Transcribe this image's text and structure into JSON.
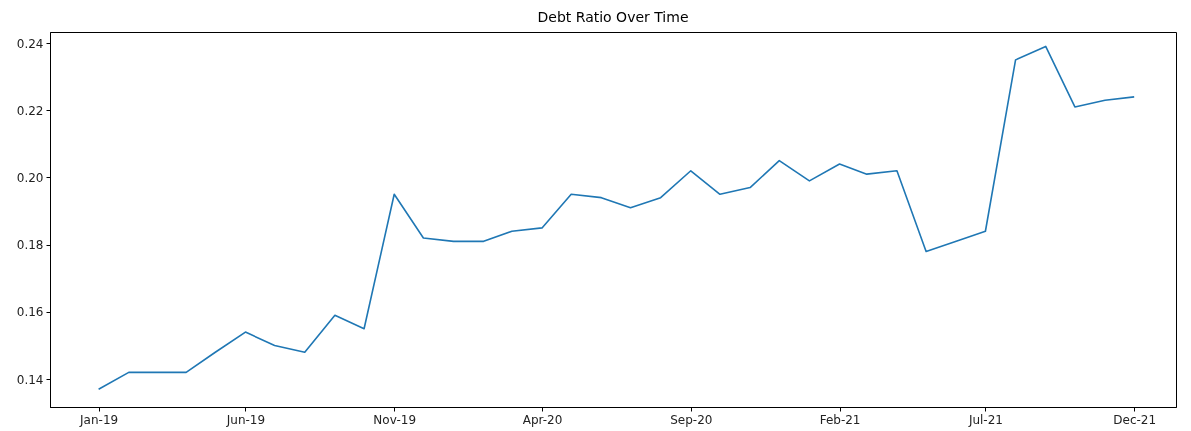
{
  "chart_data": {
    "type": "line",
    "title": "Debt Ratio Over Time",
    "x": [
      "2019-01",
      "2019-02",
      "2019-03",
      "2019-04",
      "2019-05",
      "2019-06",
      "2019-07",
      "2019-08",
      "2019-09",
      "2019-10",
      "2019-11",
      "2019-12",
      "2020-01",
      "2020-02",
      "2020-03",
      "2020-04",
      "2020-05",
      "2020-06",
      "2020-07",
      "2020-08",
      "2020-09",
      "2020-10",
      "2020-11",
      "2020-12",
      "2021-01",
      "2021-02",
      "2021-03",
      "2021-04",
      "2021-05",
      "2021-06",
      "2021-07",
      "2021-08",
      "2021-09",
      "2021-10",
      "2021-11",
      "2021-12"
    ],
    "series": [
      {
        "color": "#1f77b4",
        "values": [
          0.137,
          0.142,
          0.142,
          0.142,
          0.148,
          0.154,
          0.15,
          0.148,
          0.159,
          0.155,
          0.195,
          0.182,
          0.181,
          0.181,
          0.184,
          0.185,
          0.195,
          0.194,
          0.191,
          0.194,
          0.202,
          0.195,
          0.197,
          0.205,
          0.199,
          0.204,
          0.201,
          0.202,
          0.178,
          0.181,
          0.184,
          0.235,
          0.239,
          0.221,
          0.223,
          0.224
        ]
      }
    ],
    "xlim": [
      "2018-11-12",
      "2022-01-13"
    ],
    "xticks": [
      {
        "value": "2019-01",
        "label": "Jan-19"
      },
      {
        "value": "2019-06",
        "label": "Jun-19"
      },
      {
        "value": "2019-11",
        "label": "Nov-19"
      },
      {
        "value": "2020-04",
        "label": "Apr-20"
      },
      {
        "value": "2020-09",
        "label": "Sep-20"
      },
      {
        "value": "2021-02",
        "label": "Feb-21"
      },
      {
        "value": "2021-07",
        "label": "Jul-21"
      },
      {
        "value": "2021-12",
        "label": "Dec-21"
      }
    ],
    "ylim": [
      0.1317,
      0.2433
    ],
    "yticks": [
      {
        "value": 0.14,
        "label": "0.14"
      },
      {
        "value": 0.16,
        "label": "0.16"
      },
      {
        "value": 0.18,
        "label": "0.18"
      },
      {
        "value": 0.2,
        "label": "0.20"
      },
      {
        "value": 0.22,
        "label": "0.22"
      },
      {
        "value": 0.24,
        "label": "0.24"
      }
    ],
    "grid": false,
    "legend": false,
    "marker": "none",
    "line_style": "solid"
  }
}
